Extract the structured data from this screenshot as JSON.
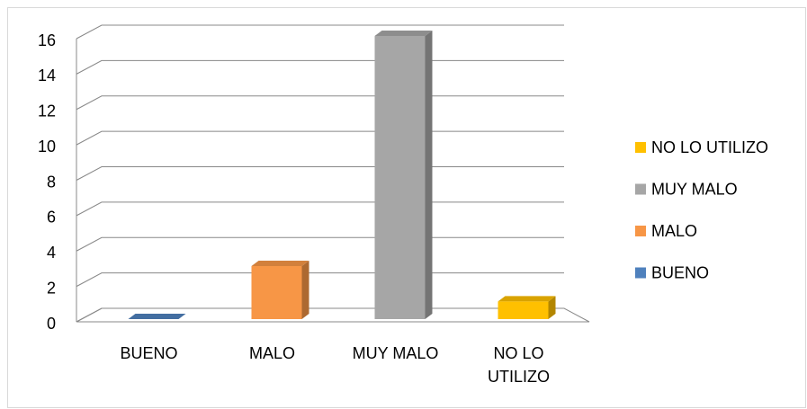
{
  "chart_data": {
    "type": "bar3d",
    "categories": [
      "BUENO",
      "MALO",
      "MUY MALO",
      "NO LO UTILIZO"
    ],
    "values": [
      0,
      3,
      16,
      1
    ],
    "colors": [
      "#4f81bd",
      "#f79646",
      "#a6a6a6",
      "#ffc000"
    ],
    "ylim": [
      0,
      16
    ],
    "yticks": [
      0,
      2,
      4,
      6,
      8,
      10,
      12,
      14,
      16
    ],
    "grid": true,
    "legend": "right"
  }
}
